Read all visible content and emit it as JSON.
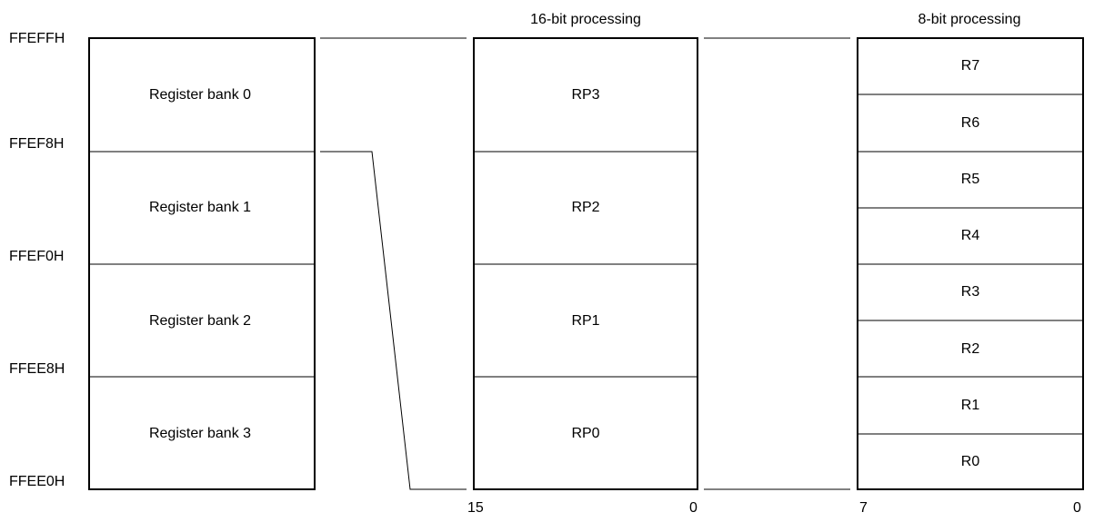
{
  "register_banks": [
    {
      "label": "Register bank 0"
    },
    {
      "label": "Register bank 1"
    },
    {
      "label": "Register bank 2"
    },
    {
      "label": "Register bank 3"
    }
  ],
  "addresses": [
    "FFEFFH",
    "FFEF8H",
    "FFEF0H",
    "FFEE8H",
    "FFEE0H"
  ],
  "sixteen_bit": {
    "title": "16-bit processing",
    "registers": [
      "RP3",
      "RP2",
      "RP1",
      "RP0"
    ],
    "bit_high": "15",
    "bit_low": "0"
  },
  "eight_bit": {
    "title": "8-bit processing",
    "registers": [
      "R7",
      "R6",
      "R5",
      "R4",
      "R3",
      "R2",
      "R1",
      "R0"
    ],
    "bit_high": "7",
    "bit_low": "0"
  }
}
